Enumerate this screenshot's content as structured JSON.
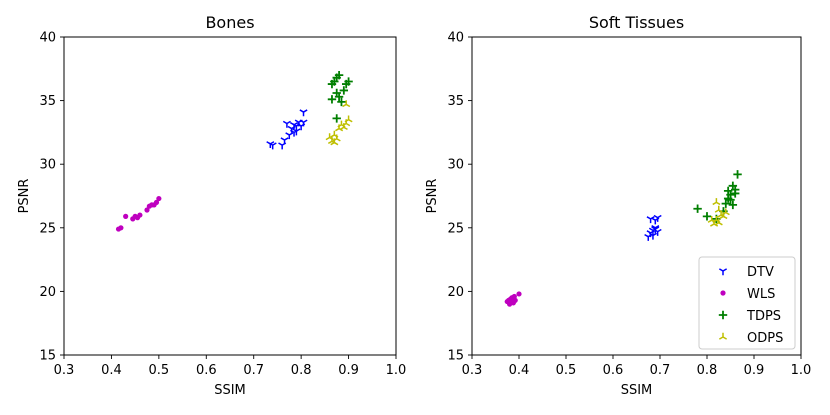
{
  "chart_data": [
    {
      "type": "scatter",
      "title": "Bones",
      "xlabel": "SSIM",
      "ylabel": "PSNR",
      "xlim": [
        0.3,
        1.0
      ],
      "ylim": [
        15,
        40
      ],
      "xticks": [
        "0.3",
        "0.4",
        "0.5",
        "0.6",
        "0.7",
        "0.8",
        "0.9",
        "1.0"
      ],
      "yticks": [
        "15",
        "20",
        "25",
        "30",
        "35",
        "40"
      ],
      "series": [
        {
          "name": "DTV",
          "marker": "tri_down",
          "color": "#0000ff",
          "points": [
            [
              0.735,
              31.6
            ],
            [
              0.74,
              31.5
            ],
            [
              0.76,
              31.5
            ],
            [
              0.765,
              31.9
            ],
            [
              0.775,
              32.3
            ],
            [
              0.77,
              33.2
            ],
            [
              0.78,
              32.8
            ],
            [
              0.785,
              33.1
            ],
            [
              0.79,
              32.6
            ],
            [
              0.795,
              33.3
            ],
            [
              0.8,
              33.0
            ],
            [
              0.785,
              32.5
            ],
            [
              0.79,
              33.0
            ],
            [
              0.805,
              33.3
            ],
            [
              0.805,
              34.1
            ]
          ]
        },
        {
          "name": "WLS",
          "marker": "circle",
          "color": "#bf00bf",
          "points": [
            [
              0.415,
              24.9
            ],
            [
              0.42,
              25.0
            ],
            [
              0.43,
              25.9
            ],
            [
              0.445,
              25.7
            ],
            [
              0.45,
              25.9
            ],
            [
              0.455,
              25.8
            ],
            [
              0.46,
              26.0
            ],
            [
              0.475,
              26.4
            ],
            [
              0.48,
              26.7
            ],
            [
              0.485,
              26.8
            ],
            [
              0.49,
              26.8
            ],
            [
              0.495,
              27.0
            ],
            [
              0.5,
              27.3
            ]
          ]
        },
        {
          "name": "TDPS",
          "marker": "plus",
          "color": "#007f00",
          "points": [
            [
              0.865,
              36.3
            ],
            [
              0.87,
              36.5
            ],
            [
              0.875,
              36.8
            ],
            [
              0.88,
              37.0
            ],
            [
              0.875,
              35.6
            ],
            [
              0.88,
              35.3
            ],
            [
              0.865,
              35.1
            ],
            [
              0.89,
              35.8
            ],
            [
              0.895,
              36.3
            ],
            [
              0.9,
              36.5
            ],
            [
              0.885,
              34.9
            ],
            [
              0.875,
              33.6
            ]
          ]
        },
        {
          "name": "ODPS",
          "marker": "tri_up",
          "color": "#bfbf00",
          "points": [
            [
              0.86,
              32.1
            ],
            [
              0.865,
              31.8
            ],
            [
              0.87,
              32.3
            ],
            [
              0.875,
              32.0
            ],
            [
              0.88,
              32.8
            ],
            [
              0.885,
              33.1
            ],
            [
              0.89,
              32.9
            ],
            [
              0.895,
              33.2
            ],
            [
              0.9,
              33.5
            ],
            [
              0.895,
              34.7
            ],
            [
              0.87,
              31.7
            ]
          ]
        }
      ]
    },
    {
      "type": "scatter",
      "title": "Soft Tissues",
      "xlabel": "SSIM",
      "ylabel": "PSNR",
      "xlim": [
        0.3,
        1.0
      ],
      "ylim": [
        15,
        40
      ],
      "xticks": [
        "0.3",
        "0.4",
        "0.5",
        "0.6",
        "0.7",
        "0.8",
        "0.9",
        "1.0"
      ],
      "yticks": [
        "15",
        "20",
        "25",
        "30",
        "35",
        "40"
      ],
      "legend": "bottom-right",
      "series": [
        {
          "name": "DTV",
          "marker": "tri_down",
          "color": "#0000ff",
          "points": [
            [
              0.675,
              24.3
            ],
            [
              0.68,
              24.6
            ],
            [
              0.685,
              24.8
            ],
            [
              0.69,
              25.0
            ],
            [
              0.685,
              24.4
            ],
            [
              0.68,
              25.7
            ],
            [
              0.69,
              25.6
            ],
            [
              0.695,
              25.8
            ],
            [
              0.69,
              24.9
            ],
            [
              0.695,
              24.7
            ]
          ]
        },
        {
          "name": "WLS",
          "marker": "circle",
          "color": "#bf00bf",
          "points": [
            [
              0.375,
              19.2
            ],
            [
              0.38,
              19.0
            ],
            [
              0.382,
              19.4
            ],
            [
              0.385,
              19.3
            ],
            [
              0.388,
              19.1
            ],
            [
              0.39,
              19.6
            ],
            [
              0.392,
              19.3
            ],
            [
              0.385,
              19.5
            ],
            [
              0.4,
              19.8
            ],
            [
              0.378,
              19.3
            ]
          ]
        },
        {
          "name": "TDPS",
          "marker": "plus",
          "color": "#007f00",
          "points": [
            [
              0.78,
              26.5
            ],
            [
              0.8,
              25.9
            ],
            [
              0.82,
              25.7
            ],
            [
              0.835,
              26.3
            ],
            [
              0.84,
              26.9
            ],
            [
              0.845,
              27.3
            ],
            [
              0.85,
              27.6
            ],
            [
              0.845,
              27.9
            ],
            [
              0.855,
              28.3
            ],
            [
              0.86,
              28.0
            ],
            [
              0.85,
              27.2
            ],
            [
              0.855,
              26.8
            ],
            [
              0.865,
              29.2
            ],
            [
              0.86,
              27.7
            ]
          ]
        },
        {
          "name": "ODPS",
          "marker": "tri_up",
          "color": "#bfbf00",
          "points": [
            [
              0.815,
              25.3
            ],
            [
              0.82,
              25.6
            ],
            [
              0.825,
              25.4
            ],
            [
              0.83,
              26.0
            ],
            [
              0.835,
              25.9
            ],
            [
              0.84,
              26.2
            ],
            [
              0.82,
              27.0
            ],
            [
              0.825,
              26.4
            ],
            [
              0.81,
              25.6
            ]
          ]
        }
      ]
    }
  ]
}
